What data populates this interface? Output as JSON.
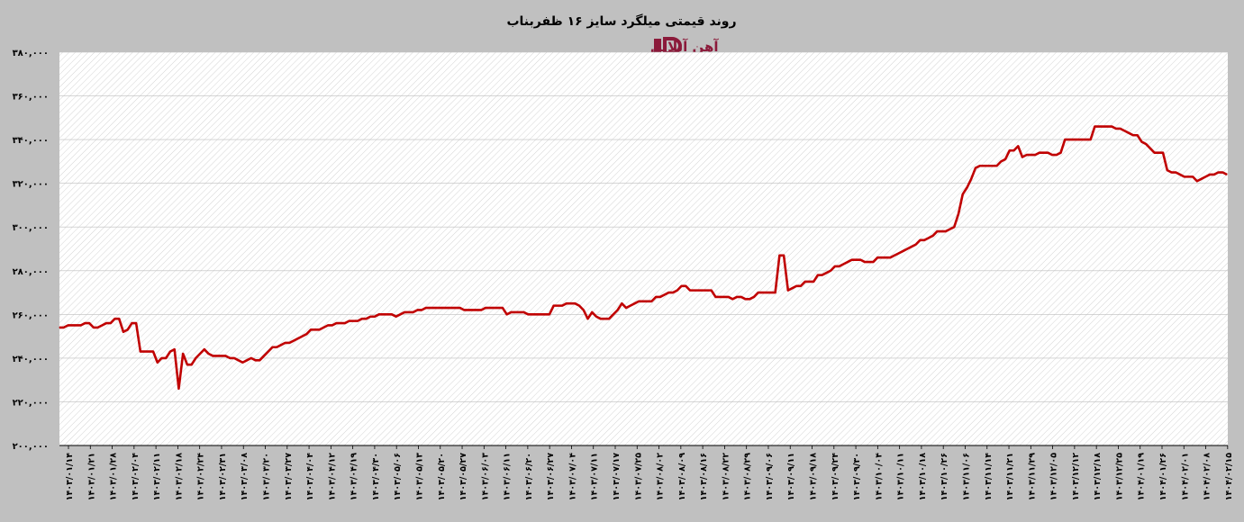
{
  "chart_data": {
    "type": "line",
    "title": "روند قیمتی میلگرد سایز ۱۶ ظفربناب",
    "watermark": "آهن آنلاین",
    "ylim": [
      200000,
      380000
    ],
    "ytick_values": [
      200000,
      220000,
      240000,
      260000,
      280000,
      300000,
      320000,
      340000,
      360000,
      380000
    ],
    "ytick_labels": [
      "۲۰۰,۰۰۰",
      "۲۲۰,۰۰۰",
      "۲۴۰,۰۰۰",
      "۲۶۰,۰۰۰",
      "۲۸۰,۰۰۰",
      "۳۰۰,۰۰۰",
      "۳۲۰,۰۰۰",
      "۳۴۰,۰۰۰",
      "۳۶۰,۰۰۰",
      "۳۸۰,۰۰۰"
    ],
    "xtick_labels": [
      "۱۴۰۳/۰۱/۱۴",
      "۱۴۰۳/۰۱/۲۱",
      "۱۴۰۳/۰۱/۲۸",
      "۱۴۰۳/۰۲/۰۴",
      "۱۴۰۳/۰۲/۱۱",
      "۱۴۰۳/۰۲/۱۸",
      "۱۴۰۳/۰۲/۲۴",
      "۱۴۰۳/۰۲/۳۱",
      "۱۴۰۳/۰۳/۰۸",
      "۱۴۰۳/۰۳/۲۰",
      "۱۴۰۳/۰۳/۲۷",
      "۱۴۰۳/۰۴/۰۴",
      "۱۴۰۳/۰۴/۱۲",
      "۱۴۰۳/۰۴/۱۹",
      "۱۴۰۳/۰۴/۳۰",
      "۱۴۰۳/۰۵/۰۶",
      "۱۴۰۳/۰۵/۱۳",
      "۱۴۰۳/۰۵/۲۰",
      "۱۴۰۳/۰۵/۲۷",
      "۱۴۰۳/۰۶/۰۳",
      "۱۴۰۳/۰۶/۱۱",
      "۱۴۰۳/۰۶/۲۰",
      "۱۴۰۳/۰۶/۲۷",
      "۱۴۰۳/۰۷/۰۴",
      "۱۴۰۳/۰۷/۱۱",
      "۱۴۰۳/۰۷/۱۷",
      "۱۴۰۳/۰۷/۲۵",
      "۱۴۰۳/۰۸/۰۲",
      "۱۴۰۳/۰۸/۰۹",
      "۱۴۰۳/۰۸/۱۶",
      "۱۴۰۳/۰۸/۲۲",
      "۱۴۰۳/۰۸/۲۹",
      "۱۴۰۳/۰۹/۰۶",
      "۱۴۰۳/۰۹/۱۱",
      "۱۴۰۳/۰۹/۱۸",
      "۱۴۰۳/۰۹/۲۴",
      "۱۴۰۳/۰۹/۳۰",
      "۱۴۰۳/۱۰/۰۴",
      "۱۴۰۳/۱۰/۱۱",
      "۱۴۰۳/۱۰/۱۸",
      "۱۴۰۳/۱۰/۲۶",
      "۱۴۰۳/۱۱/۰۶",
      "۱۴۰۳/۱۱/۱۴",
      "۱۴۰۳/۱۱/۲۱",
      "۱۴۰۳/۱۱/۲۹",
      "۱۴۰۳/۱۲/۰۵",
      "۱۴۰۳/۱۲/۱۲",
      "۱۴۰۳/۱۲/۱۸",
      "۱۴۰۳/۱۲/۲۵",
      "۱۴۰۴/۰۱/۱۹",
      "۱۴۰۴/۰۱/۲۶",
      "۱۴۰۴/۰۲/۰۱",
      "۱۴۰۴/۰۲/۰۸",
      "۱۴۰۴/۰۲/۱۵"
    ],
    "series": [
      {
        "values": [
          254000,
          254000,
          255000,
          255000,
          255000,
          255000,
          256000,
          256000,
          254000,
          254000,
          255000,
          256000,
          256000,
          258000,
          258000,
          252000,
          253000,
          256000,
          256000,
          243000,
          243000,
          243000,
          243000,
          238000,
          240000,
          240000,
          243000,
          244000,
          226000,
          242000,
          237000,
          237000,
          240000,
          242000,
          244000,
          242000,
          241000,
          241000,
          241000,
          241000,
          240000,
          240000,
          239000,
          238000,
          239000,
          240000,
          239000,
          239000,
          241000,
          243000,
          245000,
          245000,
          246000,
          247000,
          247000,
          248000,
          249000,
          250000,
          251000,
          253000,
          253000,
          253000,
          254000,
          255000,
          255000,
          256000,
          256000,
          256000,
          257000,
          257000,
          257000,
          258000,
          258000,
          259000,
          259000,
          260000,
          260000,
          260000,
          260000,
          259000,
          260000,
          261000,
          261000,
          261000,
          262000,
          262000,
          263000,
          263000,
          263000,
          263000,
          263000,
          263000,
          263000,
          263000,
          263000,
          262000,
          262000,
          262000,
          262000,
          262000,
          263000,
          263000,
          263000,
          263000,
          263000,
          260000,
          261000,
          261000,
          261000,
          261000,
          260000,
          260000,
          260000,
          260000,
          260000,
          260000,
          264000,
          264000,
          264000,
          265000,
          265000,
          265000,
          264000,
          262000,
          258000,
          261000,
          259000,
          258000,
          258000,
          258000,
          260000,
          262000,
          265000,
          263000,
          264000,
          265000,
          266000,
          266000,
          266000,
          266000,
          268000,
          268000,
          269000,
          270000,
          270000,
          271000,
          273000,
          273000,
          271000,
          271000,
          271000,
          271000,
          271000,
          271000,
          268000,
          268000,
          268000,
          268000,
          267000,
          268000,
          268000,
          267000,
          267000,
          268000,
          270000,
          270000,
          270000,
          270000,
          270000,
          287000,
          287000,
          271000,
          272000,
          273000,
          273000,
          275000,
          275000,
          275000,
          278000,
          278000,
          279000,
          280000,
          282000,
          282000,
          283000,
          284000,
          285000,
          285000,
          285000,
          284000,
          284000,
          284000,
          286000,
          286000,
          286000,
          286000,
          287000,
          288000,
          289000,
          290000,
          291000,
          292000,
          294000,
          294000,
          295000,
          296000,
          298000,
          298000,
          298000,
          299000,
          300000,
          306000,
          315000,
          318000,
          322000,
          327000,
          328000,
          328000,
          328000,
          328000,
          328000,
          330000,
          331000,
          335000,
          335000,
          337000,
          332000,
          333000,
          333000,
          333000,
          334000,
          334000,
          334000,
          333000,
          333000,
          334000,
          340000,
          340000,
          340000,
          340000,
          340000,
          340000,
          340000,
          346000,
          346000,
          346000,
          346000,
          346000,
          345000,
          345000,
          344000,
          343000,
          342000,
          342000,
          339000,
          338000,
          336000,
          334000,
          334000,
          334000,
          326000,
          325000,
          325000,
          324000,
          323000,
          323000,
          323000,
          321000,
          322000,
          323000,
          324000,
          324000,
          325000,
          325000,
          324000
        ]
      }
    ],
    "colors": {
      "background": "#c0c0c0",
      "plot_area": "#ffffff",
      "hatch": "#d4d4d4",
      "line": "#c00000",
      "logo": "#8b1a3a"
    }
  }
}
